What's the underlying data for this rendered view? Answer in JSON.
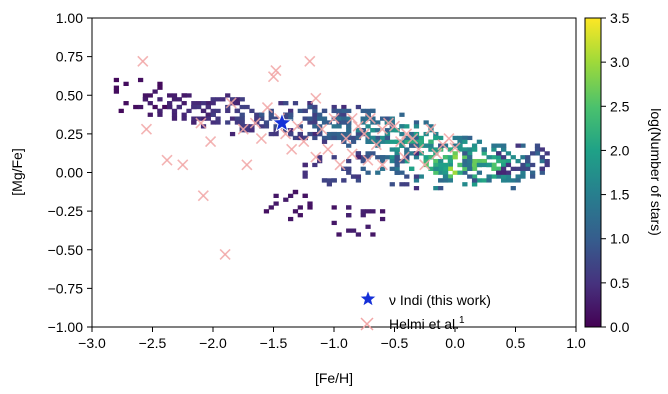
{
  "chart_data": {
    "type": "heatmap",
    "xlabel": "[Fe/H]",
    "ylabel": "[Mg/Fe]",
    "colorbar_label": "log(Number of stars)",
    "xlim": [
      -3.0,
      1.0
    ],
    "ylim": [
      -1.0,
      1.0
    ],
    "clim": [
      0.0,
      3.5
    ],
    "colormap": "viridis",
    "x_ticks": [
      "−3.0",
      "−2.5",
      "−2.0",
      "−1.5",
      "−1.0",
      "−0.5",
      "0.0",
      "0.5",
      "1.0"
    ],
    "y_ticks": [
      "−1.00",
      "−0.75",
      "−0.50",
      "−0.25",
      "0.00",
      "0.25",
      "0.50",
      "0.75",
      "1.00"
    ],
    "colorbar_ticks": [
      "0.0",
      "0.5",
      "1.0",
      "1.5",
      "2.0",
      "2.5",
      "3.0",
      "3.5"
    ],
    "grid": false,
    "legend_placement": "lower-center",
    "series": [
      {
        "name": "ν Indi (this work)",
        "marker": "star",
        "color": "#1530d8",
        "points": [
          {
            "x": -1.43,
            "y": 0.32
          }
        ]
      },
      {
        "name": "Helmi et al.",
        "name_superscript": "1",
        "marker": "x",
        "color": "#f2a6a6",
        "points": [
          {
            "x": -2.58,
            "y": 0.72
          },
          {
            "x": -2.55,
            "y": 0.28
          },
          {
            "x": -2.38,
            "y": 0.08
          },
          {
            "x": -2.25,
            "y": 0.05
          },
          {
            "x": -2.1,
            "y": 0.32
          },
          {
            "x": -2.08,
            "y": -0.15
          },
          {
            "x": -2.02,
            "y": 0.2
          },
          {
            "x": -1.9,
            "y": -0.53
          },
          {
            "x": -1.85,
            "y": 0.45
          },
          {
            "x": -1.75,
            "y": 0.28
          },
          {
            "x": -1.72,
            "y": 0.05
          },
          {
            "x": -1.65,
            "y": 0.32
          },
          {
            "x": -1.6,
            "y": 0.22
          },
          {
            "x": -1.55,
            "y": 0.42
          },
          {
            "x": -1.5,
            "y": 0.62
          },
          {
            "x": -1.48,
            "y": 0.66
          },
          {
            "x": -1.45,
            "y": 0.35
          },
          {
            "x": -1.4,
            "y": 0.25
          },
          {
            "x": -1.35,
            "y": 0.15
          },
          {
            "x": -1.3,
            "y": 0.3
          },
          {
            "x": -1.25,
            "y": 0.2
          },
          {
            "x": -1.2,
            "y": 0.72
          },
          {
            "x": -1.15,
            "y": 0.1
          },
          {
            "x": -1.15,
            "y": 0.48
          },
          {
            "x": -1.1,
            "y": 0.28
          },
          {
            "x": -1.05,
            "y": 0.15
          },
          {
            "x": -1.0,
            "y": 0.35
          },
          {
            "x": -0.95,
            "y": 0.05
          },
          {
            "x": -0.9,
            "y": 0.22
          },
          {
            "x": -0.85,
            "y": 0.12
          },
          {
            "x": -0.8,
            "y": 0.3
          },
          {
            "x": -0.75,
            "y": 0.25
          },
          {
            "x": -0.72,
            "y": 0.08
          },
          {
            "x": -0.7,
            "y": 0.35
          },
          {
            "x": -0.65,
            "y": 0.18
          },
          {
            "x": -0.6,
            "y": 0.28
          },
          {
            "x": -0.55,
            "y": 0.32
          },
          {
            "x": -0.5,
            "y": 0.3
          },
          {
            "x": -0.45,
            "y": 0.2
          },
          {
            "x": -0.42,
            "y": 0.1
          },
          {
            "x": -0.4,
            "y": 0.25
          },
          {
            "x": -0.35,
            "y": 0.22
          },
          {
            "x": -0.3,
            "y": 0.15
          },
          {
            "x": -0.25,
            "y": 0.05
          },
          {
            "x": -0.2,
            "y": 0.28
          },
          {
            "x": -0.15,
            "y": 0.12
          },
          {
            "x": -0.1,
            "y": 0.18
          },
          {
            "x": -0.05,
            "y": 0.22
          },
          {
            "x": 0.0,
            "y": 0.16
          },
          {
            "x": -0.6,
            "y": 0.05
          },
          {
            "x": -0.85,
            "y": 0.35
          }
        ]
      }
    ],
    "density_cells_log_count": [
      {
        "x": -2.6,
        "y": 0.5,
        "value": 0.2
      },
      {
        "x": -2.4,
        "y": 0.45,
        "value": 0.4
      },
      {
        "x": -2.2,
        "y": 0.42,
        "value": 0.5
      },
      {
        "x": -2.0,
        "y": 0.4,
        "value": 0.7
      },
      {
        "x": -1.8,
        "y": 0.38,
        "value": 0.9
      },
      {
        "x": -1.6,
        "y": 0.36,
        "value": 1.0
      },
      {
        "x": -1.4,
        "y": 0.35,
        "value": 1.1
      },
      {
        "x": -1.2,
        "y": 0.33,
        "value": 1.3
      },
      {
        "x": -1.0,
        "y": 0.32,
        "value": 1.5
      },
      {
        "x": -0.8,
        "y": 0.3,
        "value": 1.7
      },
      {
        "x": -0.6,
        "y": 0.28,
        "value": 2.0
      },
      {
        "x": -0.4,
        "y": 0.22,
        "value": 2.4
      },
      {
        "x": -0.2,
        "y": 0.12,
        "value": 2.9
      },
      {
        "x": 0.0,
        "y": 0.05,
        "value": 3.4
      },
      {
        "x": 0.2,
        "y": 0.04,
        "value": 3.0
      },
      {
        "x": 0.4,
        "y": 0.06,
        "value": 2.2
      },
      {
        "x": 0.6,
        "y": 0.08,
        "value": 0.9
      },
      {
        "x": -0.6,
        "y": 0.02,
        "value": 1.4
      },
      {
        "x": -1.0,
        "y": 0.0,
        "value": 0.9
      },
      {
        "x": -1.4,
        "y": -0.2,
        "value": 0.3
      },
      {
        "x": -0.8,
        "y": -0.3,
        "value": 0.4
      }
    ]
  }
}
